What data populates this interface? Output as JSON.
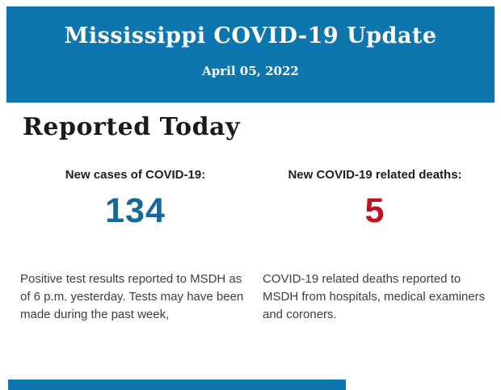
{
  "header": {
    "title": "Mississippi COVID-19 Update",
    "date": "April 05, 2022",
    "background_color": "#0e76ae",
    "text_color": "#ffffff"
  },
  "section": {
    "heading": "Reported Today"
  },
  "stats": [
    {
      "label": "New cases of COVID-19:",
      "value": "134",
      "value_color": "#17699c",
      "description": "Positive test results reported to MSDH as of 6 p.m. yesterday. Tests may have been made during the past week,"
    },
    {
      "label": "New COVID-19 related deaths:",
      "value": "5",
      "value_color": "#c0121e",
      "description": "COVID-19 related deaths reported to MSDH from hospitals, medical examiners and coroners."
    }
  ],
  "footer": {
    "partial_next_section_color": "#0e76ae"
  }
}
